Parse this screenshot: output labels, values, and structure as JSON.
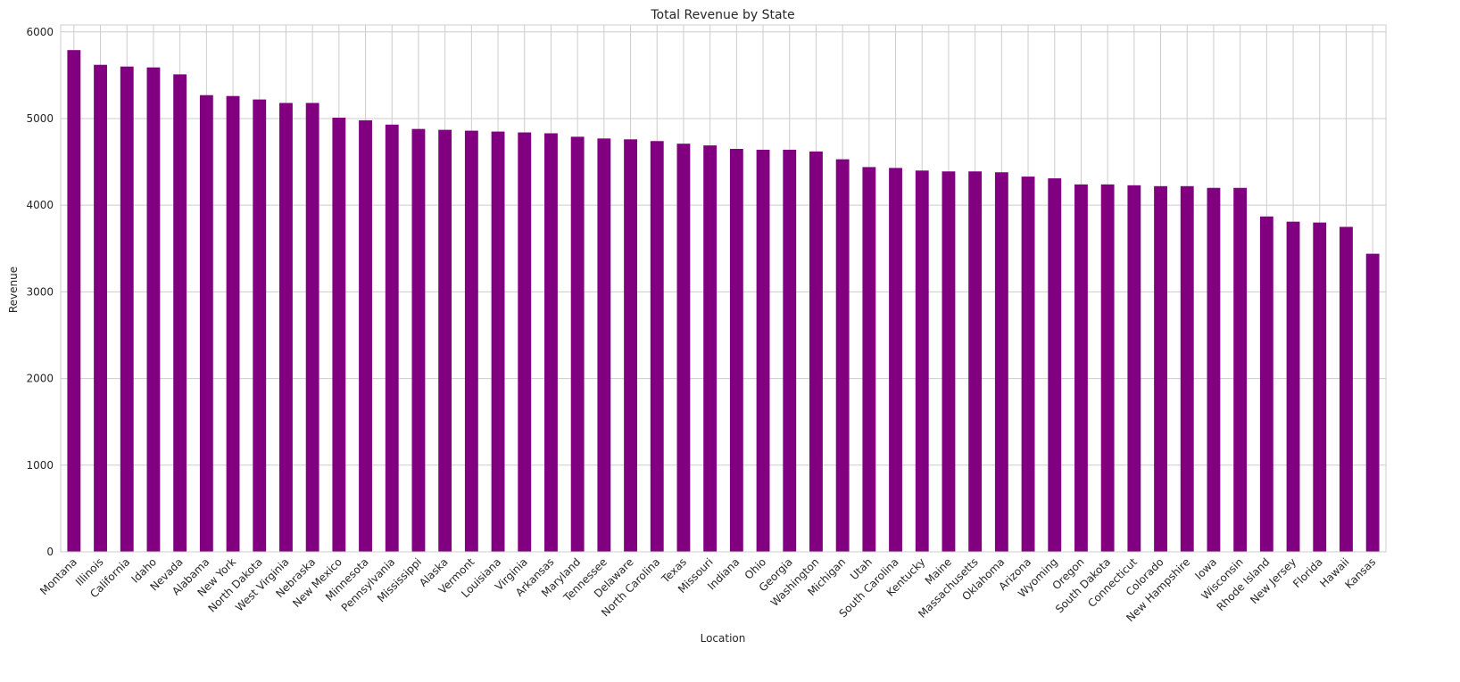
{
  "chart_data": {
    "type": "bar",
    "title": "Total Revenue by State",
    "xlabel": "Location",
    "ylabel": "Revenue",
    "ylim": [
      0,
      6080
    ],
    "yticks": [
      0,
      1000,
      2000,
      3000,
      4000,
      5000,
      6000
    ],
    "grid": true,
    "bar_color": "#800080",
    "categories": [
      "Montana",
      "Illinois",
      "California",
      "Idaho",
      "Nevada",
      "Alabama",
      "New York",
      "North Dakota",
      "West Virginia",
      "Nebraska",
      "New Mexico",
      "Minnesota",
      "Pennsylvania",
      "Mississippi",
      "Alaska",
      "Vermont",
      "Louisiana",
      "Virginia",
      "Arkansas",
      "Maryland",
      "Tennessee",
      "Delaware",
      "North Carolina",
      "Texas",
      "Missouri",
      "Indiana",
      "Ohio",
      "Georgia",
      "Washington",
      "Michigan",
      "Utah",
      "South Carolina",
      "Kentucky",
      "Maine",
      "Massachusetts",
      "Oklahoma",
      "Arizona",
      "Wyoming",
      "Oregon",
      "South Dakota",
      "Connecticut",
      "Colorado",
      "New Hampshire",
      "Iowa",
      "Wisconsin",
      "Rhode Island",
      "New Jersey",
      "Florida",
      "Hawaii",
      "Kansas"
    ],
    "values": [
      5790,
      5620,
      5600,
      5590,
      5510,
      5270,
      5260,
      5220,
      5180,
      5180,
      5010,
      4980,
      4930,
      4880,
      4870,
      4860,
      4850,
      4840,
      4830,
      4790,
      4770,
      4760,
      4740,
      4710,
      4690,
      4650,
      4640,
      4640,
      4620,
      4530,
      4440,
      4430,
      4400,
      4390,
      4390,
      4380,
      4330,
      4310,
      4240,
      4240,
      4230,
      4220,
      4220,
      4200,
      4200,
      3870,
      3810,
      3800,
      3750,
      3440
    ]
  }
}
